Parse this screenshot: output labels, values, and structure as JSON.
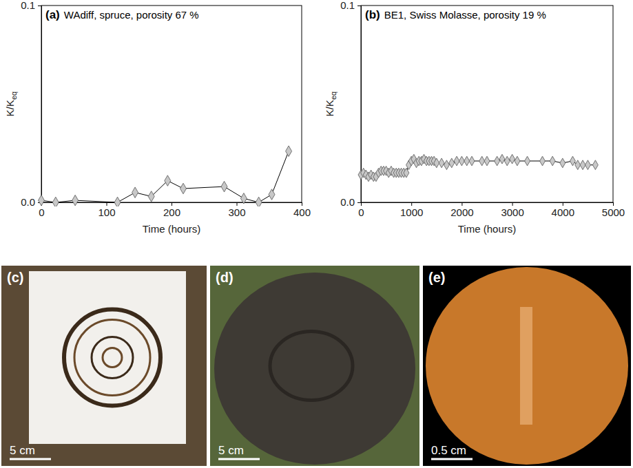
{
  "chart_data": [
    {
      "type": "line",
      "panel_label": "(a)",
      "title": "WAdiff, spruce, porosity 67 %",
      "xlabel": "Time (hours)",
      "ylabel": "K/K",
      "ylabel_subscript": "eq",
      "x": [
        0,
        22,
        52,
        117,
        144,
        169,
        194,
        218,
        281,
        311,
        334,
        354,
        380
      ],
      "values": [
        0.001,
        0.0,
        0.001,
        0.0,
        0.005,
        0.003,
        0.011,
        0.007,
        0.008,
        0.002,
        0.0,
        0.004,
        0.026
      ],
      "color": "#c8c8c8",
      "marker": "diamond",
      "line_style": "solid",
      "xlim": [
        0,
        400
      ],
      "xticks": [
        0,
        100,
        200,
        300,
        400
      ],
      "ylim": [
        0,
        0.1
      ],
      "yticks": [
        {
          "value": 0,
          "label": "0.0"
        },
        0.1
      ],
      "grid": false
    },
    {
      "type": "line",
      "panel_label": "(b)",
      "title": "BE1, Swiss Molasse, porosity 19 %",
      "xlabel": "Time (hours)",
      "ylabel": "K/K",
      "ylabel_subscript": "eq",
      "x": [
        0,
        50,
        100,
        150,
        200,
        250,
        300,
        350,
        400,
        450,
        500,
        550,
        600,
        650,
        700,
        750,
        800,
        850,
        900,
        950,
        1000,
        1050,
        1100,
        1150,
        1200,
        1250,
        1300,
        1350,
        1400,
        1450,
        1500,
        1600,
        1700,
        1800,
        1900,
        2000,
        2100,
        2200,
        2400,
        2500,
        2700,
        2800,
        2900,
        3000,
        3100,
        3300,
        3600,
        3800,
        4000,
        4200,
        4300,
        4400,
        4500,
        4650
      ],
      "values": [
        0.014,
        0.015,
        0.014,
        0.013,
        0.014,
        0.013,
        0.013,
        0.015,
        0.016,
        0.016,
        0.016,
        0.015,
        0.016,
        0.015,
        0.015,
        0.015,
        0.015,
        0.015,
        0.015,
        0.019,
        0.021,
        0.022,
        0.02,
        0.021,
        0.021,
        0.022,
        0.021,
        0.021,
        0.021,
        0.021,
        0.02,
        0.02,
        0.019,
        0.02,
        0.021,
        0.021,
        0.021,
        0.021,
        0.021,
        0.021,
        0.021,
        0.022,
        0.021,
        0.022,
        0.021,
        0.021,
        0.021,
        0.021,
        0.02,
        0.021,
        0.019,
        0.019,
        0.019,
        0.019
      ],
      "color": "#c8c8c8",
      "marker": "diamond",
      "line_style": "solid",
      "xlim": [
        0,
        5000
      ],
      "xticks": [
        0,
        1000,
        2000,
        3000,
        4000,
        5000
      ],
      "ylim": [
        0,
        0.1
      ],
      "yticks": [
        {
          "value": 0,
          "label": "0.0"
        },
        0.1
      ],
      "grid": false
    }
  ],
  "photos": [
    {
      "label": "(c)",
      "scale_bar": "5 cm"
    },
    {
      "label": "(d)",
      "scale_bar": "5 cm"
    },
    {
      "label": "(e)",
      "scale_bar": "0.5 cm"
    }
  ]
}
